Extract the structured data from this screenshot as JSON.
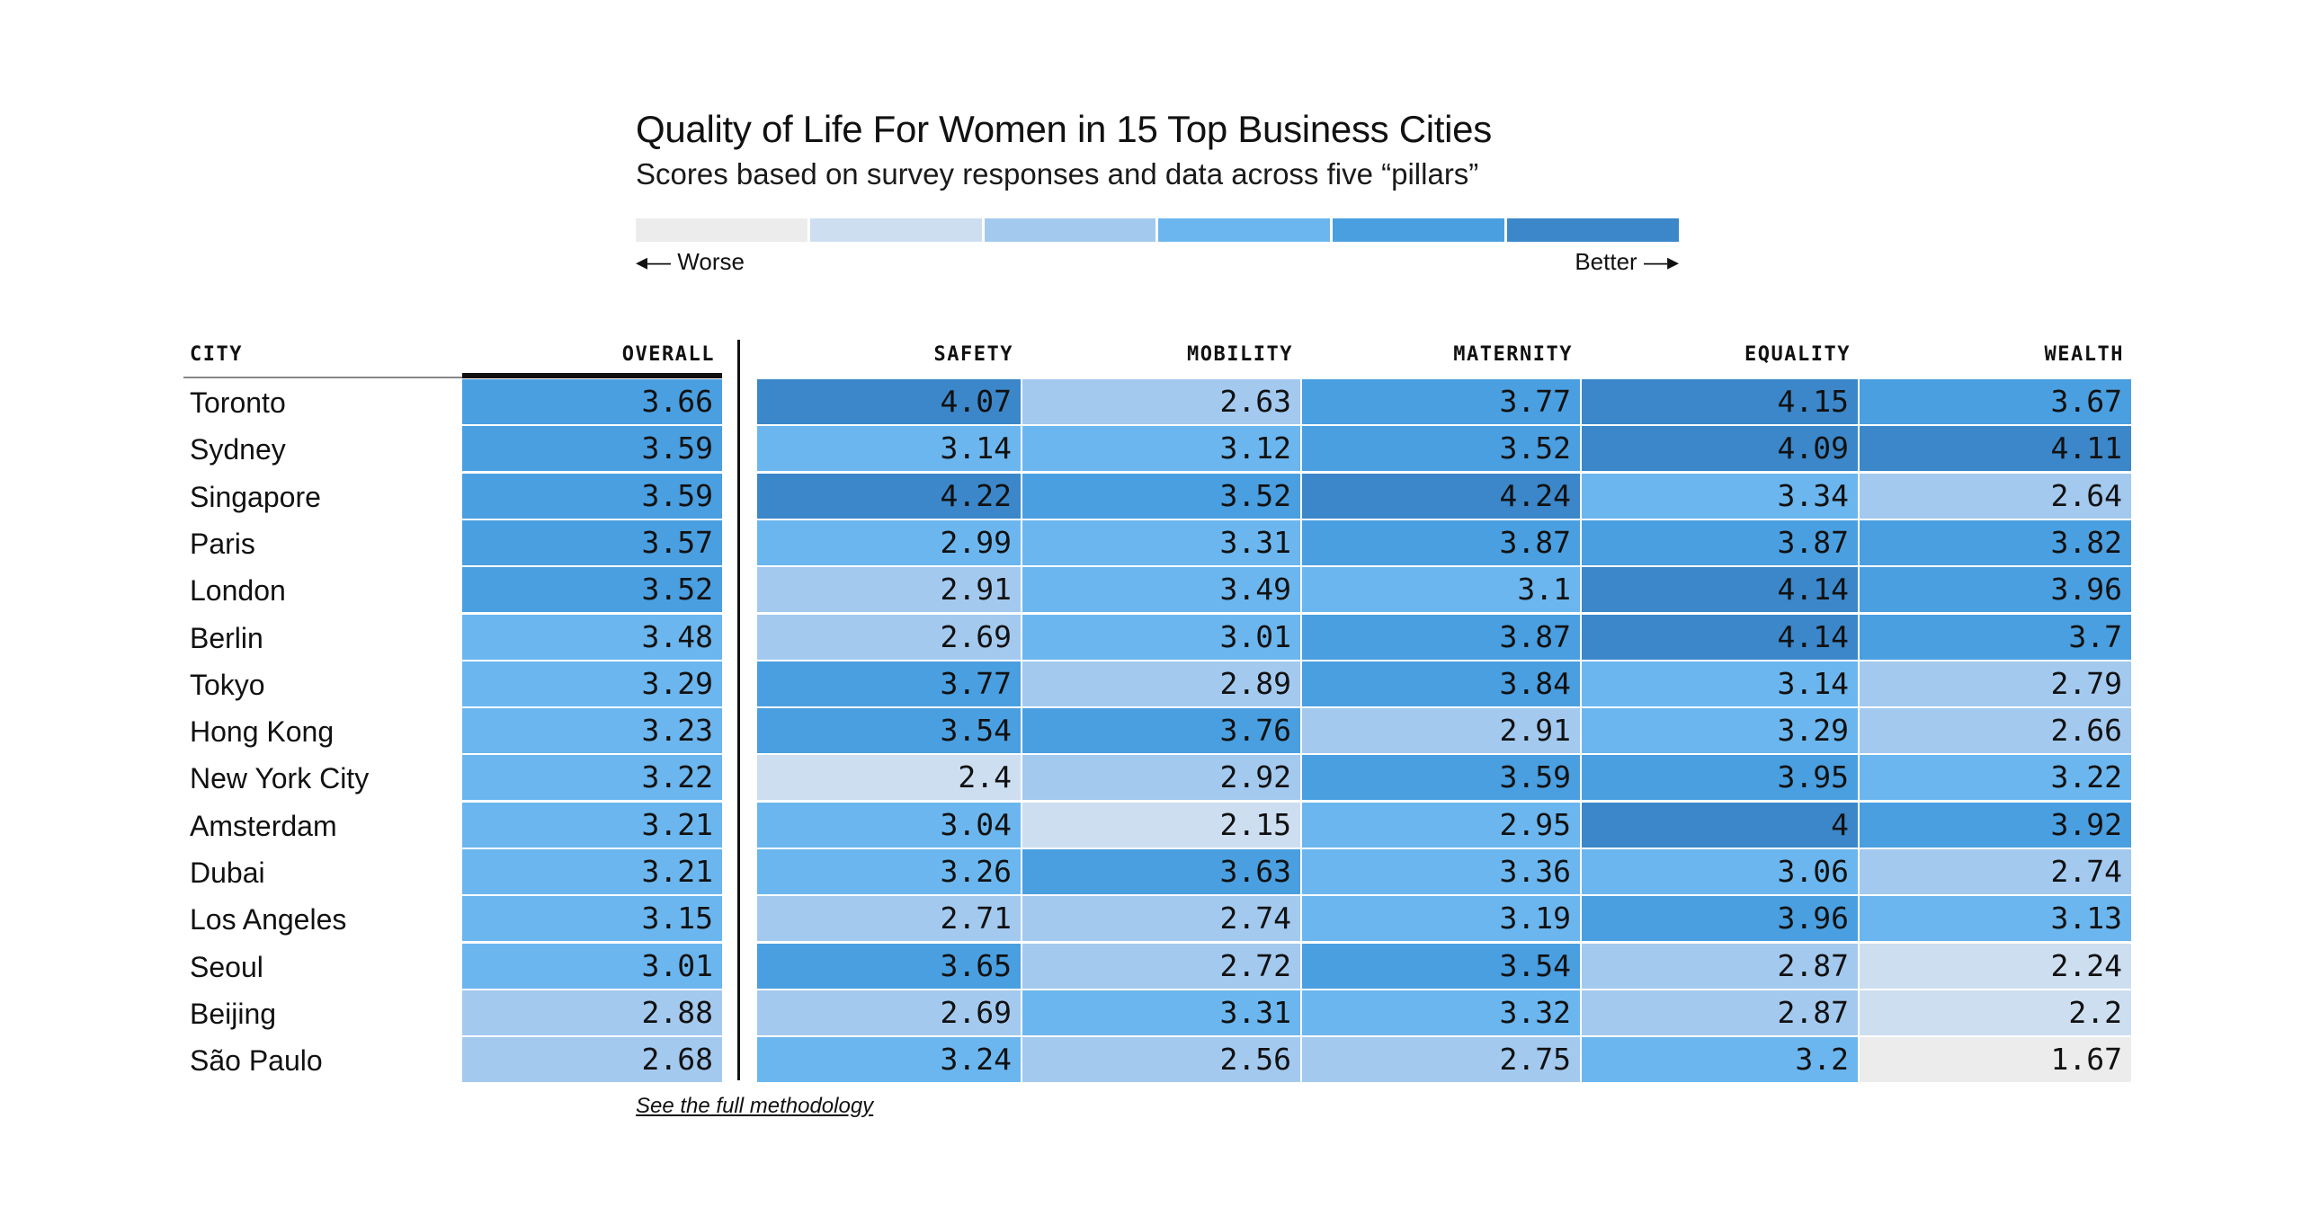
{
  "chart_data": {
    "type": "table",
    "title": "Quality of Life For Women in 15 Top Business Cities",
    "subtitle": "Scores based on survey responses and data across five “pillars”",
    "legend": {
      "worse_label": "Worse",
      "better_label": "Better",
      "colors": [
        "#ececec",
        "#cddef0",
        "#a3c9ef",
        "#6bb6ee",
        "#4a9fe0",
        "#3b87c9"
      ]
    },
    "columns": [
      "CITY",
      "OVERALL",
      "SAFETY",
      "MOBILITY",
      "MATERNITY",
      "EQUALITY",
      "WEALTH"
    ],
    "rows": [
      {
        "city": "Toronto",
        "values": [
          "3.66",
          "4.07",
          "2.63",
          "3.77",
          "4.15",
          "3.67"
        ]
      },
      {
        "city": "Sydney",
        "values": [
          "3.59",
          "3.14",
          "3.12",
          "3.52",
          "4.09",
          "4.11"
        ]
      },
      {
        "city": "Singapore",
        "values": [
          "3.59",
          "4.22",
          "3.52",
          "4.24",
          "3.34",
          "2.64"
        ]
      },
      {
        "city": "Paris",
        "values": [
          "3.57",
          "2.99",
          "3.31",
          "3.87",
          "3.87",
          "3.82"
        ]
      },
      {
        "city": "London",
        "values": [
          "3.52",
          "2.91",
          "3.49",
          "3.1",
          "4.14",
          "3.96"
        ]
      },
      {
        "city": "Berlin",
        "values": [
          "3.48",
          "2.69",
          "3.01",
          "3.87",
          "4.14",
          "3.7"
        ]
      },
      {
        "city": "Tokyo",
        "values": [
          "3.29",
          "3.77",
          "2.89",
          "3.84",
          "3.14",
          "2.79"
        ]
      },
      {
        "city": "Hong Kong",
        "values": [
          "3.23",
          "3.54",
          "3.76",
          "2.91",
          "3.29",
          "2.66"
        ]
      },
      {
        "city": "New York City",
        "values": [
          "3.22",
          "2.4",
          "2.92",
          "3.59",
          "3.95",
          "3.22"
        ]
      },
      {
        "city": "Amsterdam",
        "values": [
          "3.21",
          "3.04",
          "2.15",
          "2.95",
          "4",
          "3.92"
        ]
      },
      {
        "city": "Dubai",
        "values": [
          "3.21",
          "3.26",
          "3.63",
          "3.36",
          "3.06",
          "2.74"
        ]
      },
      {
        "city": "Los Angeles",
        "values": [
          "3.15",
          "2.71",
          "2.74",
          "3.19",
          "3.96",
          "3.13"
        ]
      },
      {
        "city": "Seoul",
        "values": [
          "3.01",
          "3.65",
          "2.72",
          "3.54",
          "2.87",
          "2.24"
        ]
      },
      {
        "city": "Beijing",
        "values": [
          "2.88",
          "2.69",
          "3.31",
          "3.32",
          "2.87",
          "2.2"
        ]
      },
      {
        "city": "São Paulo",
        "values": [
          "2.68",
          "3.24",
          "2.56",
          "2.75",
          "3.2",
          "1.67"
        ]
      }
    ],
    "color_bins": {
      "overall": [
        2.4,
        2.9,
        3.5,
        3.9
      ],
      "pillars": [
        2.0,
        2.5,
        2.95,
        3.5,
        4.0
      ]
    }
  },
  "footer": {
    "methodology_link": "See the full methodology"
  }
}
